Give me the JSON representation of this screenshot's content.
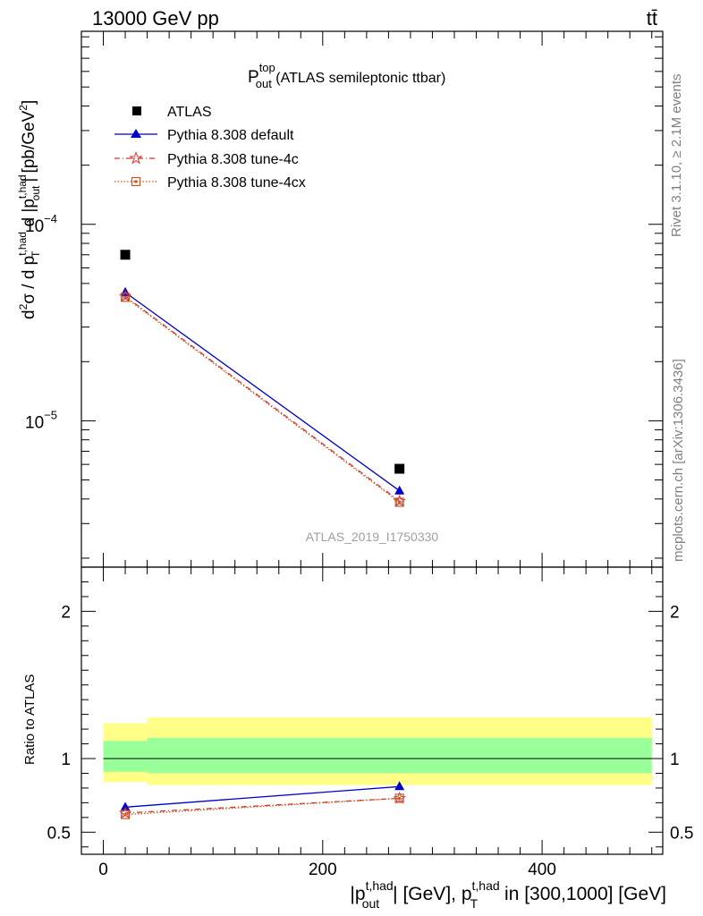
{
  "header": {
    "left": "13000 GeV pp",
    "right": "tt̄"
  },
  "side_labels": {
    "rivet": "Rivet 3.1.10, ≥ 2.1M events",
    "mcplots": "mcplots.cern.ch [arXiv:1306.3436]"
  },
  "colors": {
    "atlas": "#000000",
    "default": "#0000cc",
    "tune4c": "#dd3333",
    "tune4cx": "#cc5522",
    "band_inner": "#99ff99",
    "band_outer": "#ffff88"
  },
  "chart_data": [
    {
      "type": "scatter",
      "title_main": "P",
      "title_sup": "top",
      "title_sub": "out",
      "title_rest": " (ATLAS semileptonic ttbar)",
      "watermark": "ATLAS_2019_I1750330",
      "ylabel": "d²σ / d p_T^{t,had} d |p_out^{t,had}| [pb/GeV²]",
      "yscale": "log",
      "ylim": [
        1.8e-06,
        0.00096
      ],
      "xlim": [
        -20,
        510
      ],
      "yticks": [
        {
          "value": 0.0001,
          "base": "10",
          "exp": "−4"
        },
        {
          "value": 1e-05,
          "base": "10",
          "exp": "−5"
        }
      ],
      "legend_position": "top-left",
      "x": [
        20,
        270
      ],
      "series": [
        {
          "name": "ATLAS",
          "style": "data",
          "marker": "square",
          "values": [
            7e-05,
            5.7e-06
          ]
        },
        {
          "name": "Pythia 8.308 default",
          "style": "solid",
          "marker": "triangle",
          "values": [
            4.5e-05,
            4.4e-06
          ]
        },
        {
          "name": "Pythia 8.308 tune-4c",
          "style": "dashdot",
          "marker": "star",
          "values": [
            4.3e-05,
            3.9e-06
          ]
        },
        {
          "name": "Pythia 8.308 tune-4cx",
          "style": "dotted",
          "marker": "opensquare",
          "values": [
            4.25e-05,
            3.85e-06
          ]
        }
      ]
    },
    {
      "type": "scatter",
      "ylabel": "Ratio to ATLAS",
      "ylim": [
        0.35,
        2.3
      ],
      "xlim": [
        -20,
        510
      ],
      "xticks": [
        0,
        200,
        400
      ],
      "yticks": [
        0.5,
        1,
        2
      ],
      "xlabel_parts": [
        "|p",
        "t,had",
        "out",
        "| [GeV], p",
        "t,had",
        "T",
        " in [300,1000] [GeV]"
      ],
      "reference_line": 1,
      "bands": [
        {
          "x0": 0,
          "x1": 40,
          "inner": [
            0.91,
            1.12
          ],
          "outer": [
            0.84,
            1.24
          ]
        },
        {
          "x0": 40,
          "x1": 500,
          "inner": [
            0.9,
            1.14
          ],
          "outer": [
            0.82,
            1.28
          ]
        }
      ],
      "x": [
        20,
        270
      ],
      "series": [
        {
          "name": "Pythia 8.308 default",
          "values": [
            0.67,
            0.81
          ]
        },
        {
          "name": "Pythia 8.308 tune-4c",
          "values": [
            0.63,
            0.73
          ]
        },
        {
          "name": "Pythia 8.308 tune-4cx",
          "values": [
            0.62,
            0.73
          ]
        }
      ]
    }
  ]
}
